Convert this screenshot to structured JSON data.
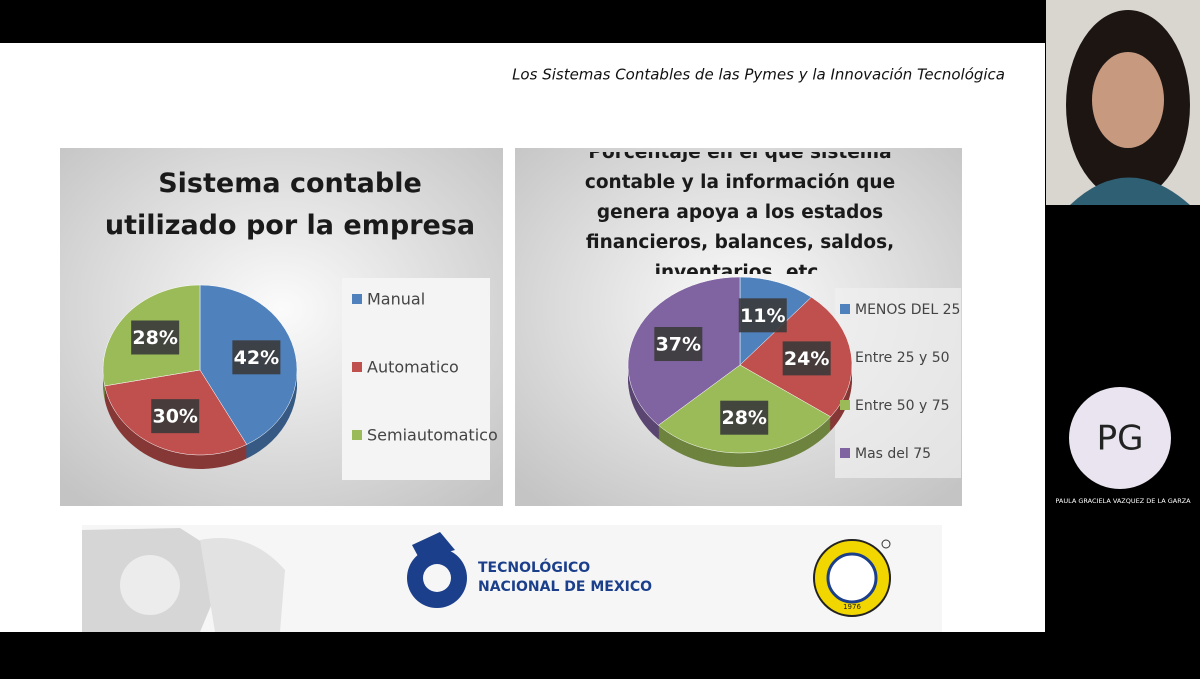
{
  "header": {
    "title": "Los Sistemas Contables de las Pymes y la Innovación Tecnológica"
  },
  "chart_data": [
    {
      "type": "pie",
      "title": "Sistema contable utilizado por la empresa",
      "categories": [
        "Manual",
        "Automatico",
        "Semiautomatico"
      ],
      "values": [
        42,
        30,
        28
      ],
      "value_labels": [
        "42%",
        "30%",
        "28%"
      ],
      "colors": [
        "#4f81bd",
        "#c0504d",
        "#9bbb59"
      ],
      "legend": "right"
    },
    {
      "type": "pie",
      "title": "Porcentaje en el que sistema contable y la información que genera apoya a los estados financieros, balances, saldos, inventarios, etc.",
      "categories": [
        "MENOS DEL 25",
        "Entre 25 y 50",
        "Entre 50 y 75",
        "Mas del 75"
      ],
      "values": [
        11,
        24,
        28,
        37
      ],
      "value_labels": [
        "11%",
        "24%",
        "28%",
        "37%"
      ],
      "colors": [
        "#4f81bd",
        "#c0504d",
        "#9bbb59",
        "#8064a2"
      ],
      "legend": "right"
    }
  ],
  "footer": {
    "logo_line1": "TECNOLÓGICO",
    "logo_line2": "NACIONAL DE MEXICO",
    "seal_year": "1976"
  },
  "participant": {
    "initials": "PG",
    "name": "PAULA GRACIELA VAZQUEZ DE LA GARZA"
  }
}
